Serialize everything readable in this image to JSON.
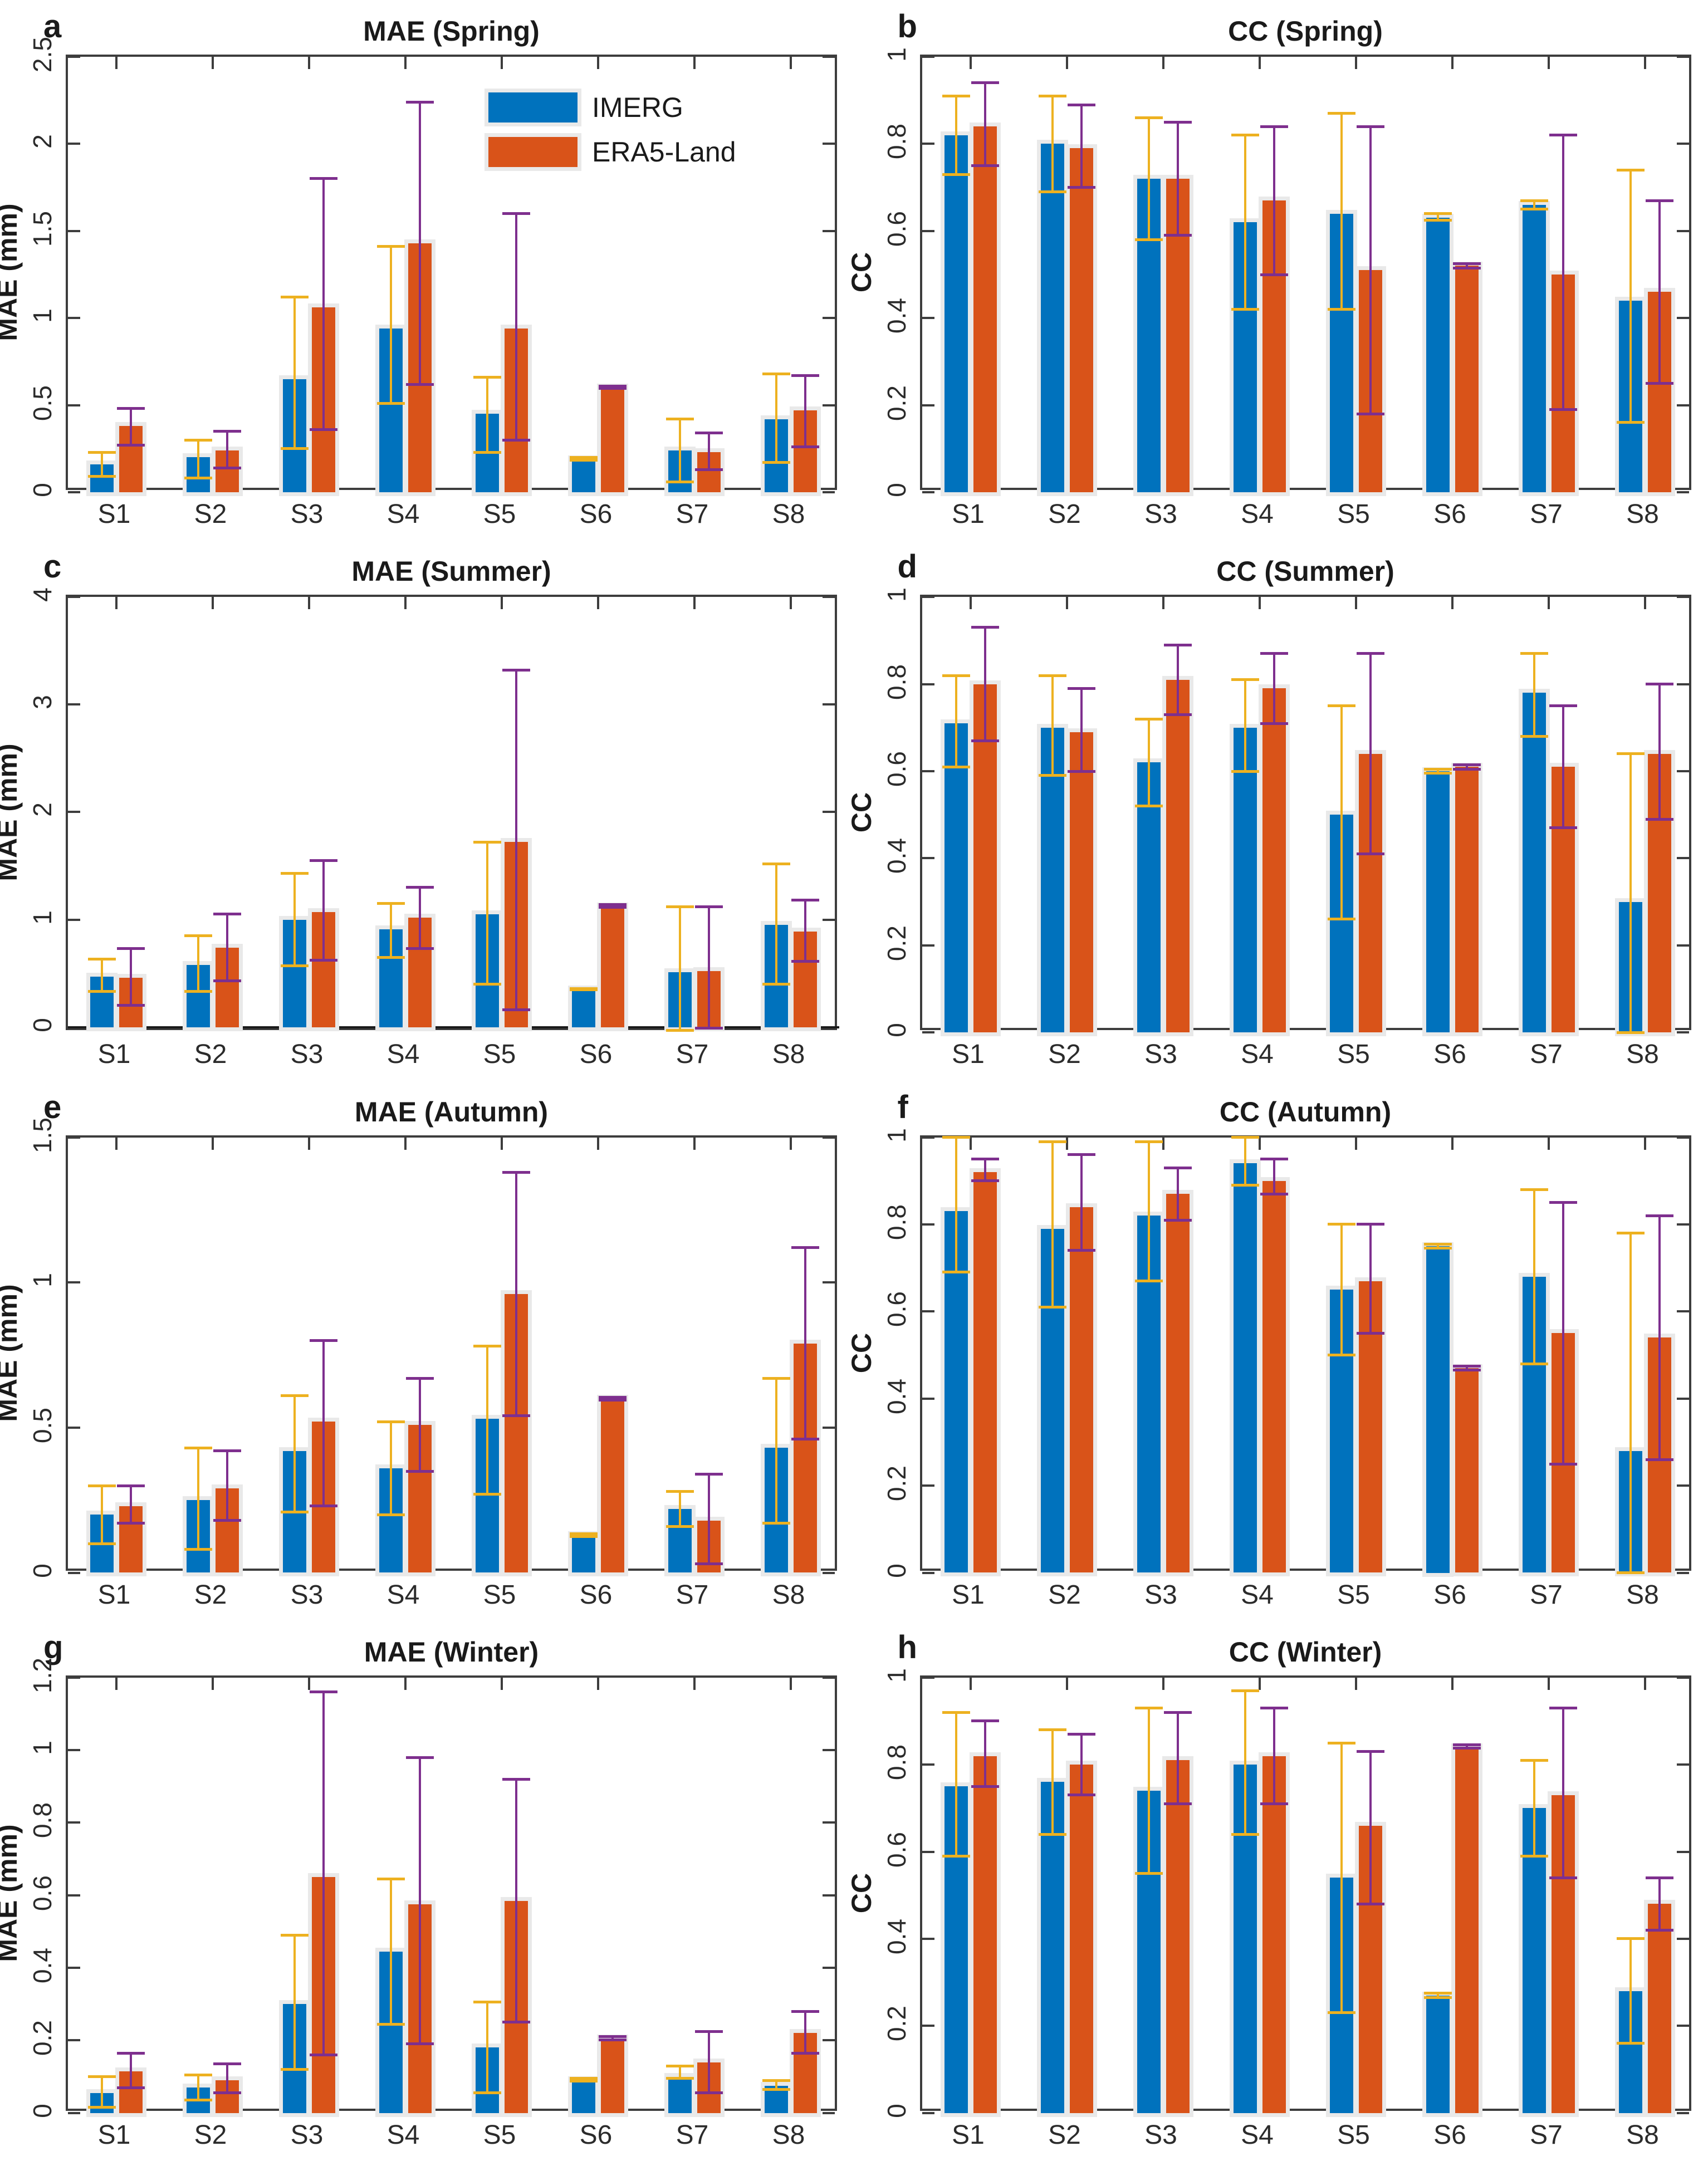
{
  "figure": {
    "columns": 2,
    "rows": 4,
    "colors": {
      "imerg_bar": "#0072BD",
      "era5_bar": "#D95319",
      "imerg_err": "#EDB120",
      "era5_err": "#7E2F8E",
      "bar_edge": "#E9E9E9",
      "axis": "#3D3D3D",
      "text": "#1A1A1A"
    },
    "legend": {
      "items": [
        {
          "name": "imerg",
          "label": "IMERG",
          "color": "#0072BD"
        },
        {
          "name": "era5",
          "label": "ERA5-Land",
          "color": "#D95319"
        }
      ]
    }
  },
  "chart_data": [
    {
      "panel": "a",
      "type": "bar",
      "title": "MAE (Spring)",
      "ylabel": "MAE (mm)",
      "ylim": [
        0,
        2.5
      ],
      "ytick_vals": [
        0,
        0.5,
        1,
        1.5,
        2,
        2.5
      ],
      "ytick_labels": [
        "0",
        "0.5",
        "1",
        "1.5",
        "2",
        "2.5"
      ],
      "categories": [
        "S1",
        "S2",
        "S3",
        "S4",
        "S5",
        "S6",
        "S7",
        "S8"
      ],
      "legend": true,
      "series": [
        {
          "name": "IMERG",
          "values": [
            0.16,
            0.2,
            0.65,
            0.94,
            0.45,
            0.19,
            0.24,
            0.42
          ],
          "err_lo": [
            0.09,
            0.08,
            0.25,
            0.51,
            0.23,
            0.185,
            0.06,
            0.17
          ],
          "err_hi": [
            0.23,
            0.3,
            1.12,
            1.41,
            0.66,
            0.2,
            0.42,
            0.68
          ]
        },
        {
          "name": "ERA5-Land",
          "values": [
            0.38,
            0.24,
            1.06,
            1.43,
            0.94,
            0.6,
            0.23,
            0.47
          ],
          "err_lo": [
            0.27,
            0.14,
            0.36,
            0.62,
            0.3,
            0.595,
            0.13,
            0.26
          ],
          "err_hi": [
            0.48,
            0.35,
            1.8,
            2.24,
            1.6,
            0.61,
            0.34,
            0.67
          ]
        }
      ]
    },
    {
      "panel": "b",
      "type": "bar",
      "title": "CC (Spring)",
      "ylabel": "CC",
      "ylim": [
        0,
        1
      ],
      "ytick_vals": [
        0,
        0.2,
        0.4,
        0.6,
        0.8,
        1
      ],
      "ytick_labels": [
        "0",
        "0.2",
        "0.4",
        "0.6",
        "0.8",
        "1"
      ],
      "categories": [
        "S1",
        "S2",
        "S3",
        "S4",
        "S5",
        "S6",
        "S7",
        "S8"
      ],
      "legend": false,
      "series": [
        {
          "name": "IMERG",
          "values": [
            0.82,
            0.8,
            0.72,
            0.62,
            0.64,
            0.63,
            0.66,
            0.44
          ],
          "err_lo": [
            0.73,
            0.69,
            0.58,
            0.42,
            0.42,
            0.625,
            0.65,
            0.16
          ],
          "err_hi": [
            0.91,
            0.91,
            0.86,
            0.82,
            0.87,
            0.64,
            0.67,
            0.74
          ]
        },
        {
          "name": "ERA5-Land",
          "values": [
            0.84,
            0.79,
            0.72,
            0.67,
            0.51,
            0.52,
            0.5,
            0.46
          ],
          "err_lo": [
            0.75,
            0.7,
            0.59,
            0.5,
            0.18,
            0.515,
            0.19,
            0.25
          ],
          "err_hi": [
            0.94,
            0.89,
            0.85,
            0.84,
            0.84,
            0.525,
            0.82,
            0.67
          ]
        }
      ]
    },
    {
      "panel": "c",
      "type": "bar",
      "title": "MAE (Summer)",
      "ylabel": "MAE (mm)",
      "ylim": [
        -0.05,
        4
      ],
      "ytick_vals": [
        0,
        1,
        2,
        3,
        4
      ],
      "ytick_labels": [
        "0",
        "1",
        "2",
        "3",
        "4"
      ],
      "categories": [
        "S1",
        "S2",
        "S3",
        "S4",
        "S5",
        "S6",
        "S7",
        "S8"
      ],
      "legend": false,
      "series": [
        {
          "name": "IMERG",
          "values": [
            0.47,
            0.58,
            1.0,
            0.91,
            1.05,
            0.35,
            0.51,
            0.95
          ],
          "err_lo": [
            0.33,
            0.33,
            0.57,
            0.65,
            0.4,
            0.345,
            -0.03,
            0.4
          ],
          "err_hi": [
            0.63,
            0.85,
            1.43,
            1.15,
            1.72,
            0.36,
            1.12,
            1.52
          ]
        },
        {
          "name": "ERA5-Land",
          "values": [
            0.46,
            0.74,
            1.07,
            1.02,
            1.72,
            1.12,
            0.52,
            0.89
          ],
          "err_lo": [
            0.2,
            0.43,
            0.62,
            0.73,
            0.16,
            1.115,
            -0.01,
            0.61
          ],
          "err_hi": [
            0.73,
            1.05,
            1.55,
            1.3,
            3.32,
            1.14,
            1.12,
            1.18
          ]
        }
      ]
    },
    {
      "panel": "d",
      "type": "bar",
      "title": "CC (Summer)",
      "ylabel": "CC",
      "ylim": [
        0,
        1
      ],
      "ytick_vals": [
        0,
        0.2,
        0.4,
        0.6,
        0.8,
        1
      ],
      "ytick_labels": [
        "0",
        "0.2",
        "0.4",
        "0.6",
        "0.8",
        "1"
      ],
      "categories": [
        "S1",
        "S2",
        "S3",
        "S4",
        "S5",
        "S6",
        "S7",
        "S8"
      ],
      "legend": false,
      "series": [
        {
          "name": "IMERG",
          "values": [
            0.71,
            0.7,
            0.62,
            0.7,
            0.5,
            0.6,
            0.78,
            0.3
          ],
          "err_lo": [
            0.61,
            0.59,
            0.52,
            0.6,
            0.26,
            0.595,
            0.68,
            0.0
          ],
          "err_hi": [
            0.82,
            0.82,
            0.72,
            0.81,
            0.75,
            0.605,
            0.87,
            0.64
          ]
        },
        {
          "name": "ERA5-Land",
          "values": [
            0.8,
            0.69,
            0.81,
            0.79,
            0.64,
            0.61,
            0.61,
            0.64
          ],
          "err_lo": [
            0.67,
            0.6,
            0.73,
            0.71,
            0.41,
            0.605,
            0.47,
            0.49
          ],
          "err_hi": [
            0.93,
            0.79,
            0.89,
            0.87,
            0.87,
            0.615,
            0.75,
            0.8
          ]
        }
      ]
    },
    {
      "panel": "e",
      "type": "bar",
      "title": "MAE (Autumn)",
      "ylabel": "MAE (mm)",
      "ylim": [
        0,
        1.5
      ],
      "ytick_vals": [
        0,
        0.5,
        1,
        1.5
      ],
      "ytick_labels": [
        "0",
        "0.5",
        "1",
        "1.5"
      ],
      "categories": [
        "S1",
        "S2",
        "S3",
        "S4",
        "S5",
        "S6",
        "S7",
        "S8"
      ],
      "legend": false,
      "series": [
        {
          "name": "IMERG",
          "values": [
            0.2,
            0.25,
            0.42,
            0.36,
            0.53,
            0.13,
            0.22,
            0.43
          ],
          "err_lo": [
            0.1,
            0.08,
            0.21,
            0.2,
            0.27,
            0.125,
            0.16,
            0.17
          ],
          "err_hi": [
            0.3,
            0.43,
            0.61,
            0.52,
            0.78,
            0.135,
            0.28,
            0.67
          ]
        },
        {
          "name": "ERA5-Land",
          "values": [
            0.23,
            0.29,
            0.52,
            0.51,
            0.96,
            0.6,
            0.18,
            0.79
          ],
          "err_lo": [
            0.17,
            0.18,
            0.23,
            0.35,
            0.54,
            0.595,
            0.03,
            0.46
          ],
          "err_hi": [
            0.3,
            0.42,
            0.8,
            0.67,
            1.38,
            0.605,
            0.34,
            1.12
          ]
        }
      ]
    },
    {
      "panel": "f",
      "type": "bar",
      "title": "CC (Autumn)",
      "ylabel": "CC",
      "ylim": [
        0,
        1
      ],
      "ytick_vals": [
        0,
        0.2,
        0.4,
        0.6,
        0.8,
        1
      ],
      "ytick_labels": [
        "0",
        "0.2",
        "0.4",
        "0.6",
        "0.8",
        "1"
      ],
      "categories": [
        "S1",
        "S2",
        "S3",
        "S4",
        "S5",
        "S6",
        "S7",
        "S8"
      ],
      "legend": false,
      "series": [
        {
          "name": "IMERG",
          "values": [
            0.83,
            0.79,
            0.82,
            0.94,
            0.65,
            0.75,
            0.68,
            0.28
          ],
          "err_lo": [
            0.69,
            0.61,
            0.67,
            0.89,
            0.5,
            0.745,
            0.48,
            0.0
          ],
          "err_hi": [
            1.0,
            0.99,
            0.99,
            1.0,
            0.8,
            0.755,
            0.88,
            0.78
          ]
        },
        {
          "name": "ERA5-Land",
          "values": [
            0.92,
            0.84,
            0.87,
            0.9,
            0.67,
            0.47,
            0.55,
            0.54
          ],
          "err_lo": [
            0.9,
            0.74,
            0.81,
            0.87,
            0.55,
            0.465,
            0.25,
            0.26
          ],
          "err_hi": [
            0.95,
            0.96,
            0.93,
            0.95,
            0.8,
            0.475,
            0.85,
            0.82
          ]
        }
      ]
    },
    {
      "panel": "g",
      "type": "bar",
      "title": "MAE (Winter)",
      "ylabel": "MAE (mm)",
      "ylim": [
        0,
        1.2
      ],
      "ytick_vals": [
        0,
        0.2,
        0.4,
        0.6,
        0.8,
        1,
        1.2
      ],
      "ytick_labels": [
        "0",
        "0.2",
        "0.4",
        "0.6",
        "0.8",
        "1",
        "1.2"
      ],
      "categories": [
        "S1",
        "S2",
        "S3",
        "S4",
        "S5",
        "S6",
        "S7",
        "S8"
      ],
      "legend": false,
      "series": [
        {
          "name": "IMERG",
          "values": [
            0.055,
            0.07,
            0.3,
            0.445,
            0.18,
            0.09,
            0.1,
            0.075
          ],
          "err_lo": [
            0.015,
            0.035,
            0.12,
            0.245,
            0.055,
            0.088,
            0.095,
            0.065
          ],
          "err_hi": [
            0.1,
            0.105,
            0.49,
            0.645,
            0.305,
            0.095,
            0.13,
            0.09
          ]
        },
        {
          "name": "ERA5-Land",
          "values": [
            0.115,
            0.09,
            0.65,
            0.575,
            0.585,
            0.205,
            0.14,
            0.22
          ],
          "err_lo": [
            0.07,
            0.055,
            0.16,
            0.19,
            0.25,
            0.202,
            0.055,
            0.165
          ],
          "err_hi": [
            0.165,
            0.135,
            1.16,
            0.98,
            0.92,
            0.21,
            0.225,
            0.28
          ]
        }
      ]
    },
    {
      "panel": "h",
      "type": "bar",
      "title": "CC (Winter)",
      "ylabel": "CC",
      "ylim": [
        0,
        1
      ],
      "ytick_vals": [
        0,
        0.2,
        0.4,
        0.6,
        0.8,
        1
      ],
      "ytick_labels": [
        "0",
        "0.2",
        "0.4",
        "0.6",
        "0.8",
        "1"
      ],
      "categories": [
        "S1",
        "S2",
        "S3",
        "S4",
        "S5",
        "S6",
        "S7",
        "S8"
      ],
      "legend": false,
      "series": [
        {
          "name": "IMERG",
          "values": [
            0.75,
            0.76,
            0.74,
            0.8,
            0.54,
            0.27,
            0.7,
            0.28
          ],
          "err_lo": [
            0.59,
            0.64,
            0.55,
            0.64,
            0.23,
            0.265,
            0.59,
            0.16
          ],
          "err_hi": [
            0.92,
            0.88,
            0.93,
            0.97,
            0.85,
            0.275,
            0.81,
            0.4
          ]
        },
        {
          "name": "ERA5-Land",
          "values": [
            0.82,
            0.8,
            0.81,
            0.82,
            0.66,
            0.84,
            0.73,
            0.48
          ],
          "err_lo": [
            0.75,
            0.73,
            0.71,
            0.71,
            0.48,
            0.838,
            0.54,
            0.42
          ],
          "err_hi": [
            0.9,
            0.87,
            0.92,
            0.93,
            0.83,
            0.845,
            0.93,
            0.54
          ]
        }
      ]
    }
  ]
}
